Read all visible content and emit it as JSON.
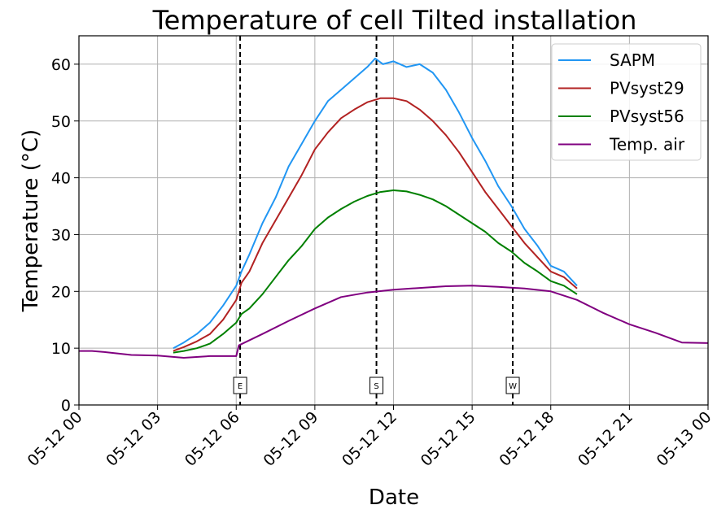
{
  "chart_data": {
    "type": "line",
    "title": "Temperature of cell Tilted installation",
    "xlabel": "Date",
    "ylabel": "Temperature (°C)",
    "ylim": [
      0,
      65
    ],
    "xlim_hours": [
      0,
      24
    ],
    "grid": true,
    "legend_position": "top-right",
    "x_tick_labels": [
      "05-12 00",
      "05-12 03",
      "05-12 06",
      "05-12 09",
      "05-12 12",
      "05-12 15",
      "05-12 18",
      "05-12 21",
      "05-13 00"
    ],
    "y_ticks": [
      0,
      10,
      20,
      30,
      40,
      50,
      60
    ],
    "vertical_markers": [
      {
        "label": "E",
        "x_hour": 6.15
      },
      {
        "label": "S",
        "x_hour": 11.35
      },
      {
        "label": "W",
        "x_hour": 16.55
      }
    ],
    "series": [
      {
        "name": "SAPM",
        "color": "#2196f3",
        "x_hour": [
          3.6,
          4.0,
          4.5,
          5.0,
          5.5,
          6.0,
          6.2,
          6.5,
          7.0,
          7.5,
          8.0,
          8.5,
          9.0,
          9.5,
          10.0,
          10.5,
          11.0,
          11.3,
          11.6,
          12.0,
          12.5,
          13.0,
          13.5,
          14.0,
          14.5,
          15.0,
          15.5,
          16.0,
          16.5,
          17.0,
          17.5,
          18.0,
          18.5,
          19.0
        ],
        "values": [
          10.0,
          11.0,
          12.5,
          14.5,
          17.5,
          21.0,
          23.5,
          26.5,
          32.0,
          36.5,
          42.0,
          46.0,
          50.0,
          53.5,
          55.5,
          57.5,
          59.5,
          61.0,
          60.0,
          60.5,
          59.5,
          60.0,
          58.5,
          55.5,
          51.5,
          47.0,
          43.0,
          38.5,
          35.0,
          31.0,
          28.0,
          24.5,
          23.5,
          21.0
        ]
      },
      {
        "name": "PVsyst29",
        "color": "#b22222",
        "x_hour": [
          3.6,
          4.0,
          4.5,
          5.0,
          5.5,
          6.0,
          6.2,
          6.5,
          7.0,
          7.5,
          8.0,
          8.5,
          9.0,
          9.5,
          10.0,
          10.5,
          11.0,
          11.5,
          12.0,
          12.5,
          13.0,
          13.5,
          14.0,
          14.5,
          15.0,
          15.5,
          16.0,
          16.5,
          17.0,
          17.5,
          18.0,
          18.5,
          19.0
        ],
        "values": [
          9.5,
          10.2,
          11.2,
          12.5,
          15.0,
          18.5,
          21.5,
          23.5,
          28.5,
          32.5,
          36.5,
          40.5,
          45.0,
          48.0,
          50.5,
          52.0,
          53.3,
          54.0,
          54.0,
          53.5,
          52.0,
          50.0,
          47.5,
          44.5,
          41.0,
          37.5,
          34.5,
          31.5,
          28.5,
          26.0,
          23.5,
          22.5,
          20.5
        ]
      },
      {
        "name": "PVsyst56",
        "color": "#008000",
        "x_hour": [
          3.6,
          4.0,
          4.5,
          5.0,
          5.5,
          6.0,
          6.2,
          6.5,
          7.0,
          7.5,
          8.0,
          8.5,
          9.0,
          9.5,
          10.0,
          10.5,
          11.0,
          11.5,
          12.0,
          12.5,
          13.0,
          13.5,
          14.0,
          14.5,
          15.0,
          15.5,
          16.0,
          16.5,
          17.0,
          17.5,
          18.0,
          18.5,
          19.0
        ],
        "values": [
          9.2,
          9.5,
          10.0,
          10.8,
          12.5,
          14.5,
          16.0,
          17.0,
          19.5,
          22.5,
          25.5,
          28.0,
          31.0,
          33.0,
          34.5,
          35.8,
          36.8,
          37.5,
          37.8,
          37.6,
          37.0,
          36.2,
          35.0,
          33.5,
          32.0,
          30.5,
          28.5,
          27.0,
          25.0,
          23.5,
          21.8,
          21.0,
          19.5
        ]
      },
      {
        "name": "Temp. air",
        "color": "#800080",
        "x_hour": [
          0,
          0.5,
          1.0,
          2.0,
          3.0,
          4.0,
          5.0,
          6.0,
          6.1,
          7.0,
          8.0,
          9.0,
          10.0,
          11.0,
          12.0,
          13.0,
          14.0,
          15.0,
          16.0,
          17.0,
          18.0,
          19.0,
          20.0,
          21.0,
          22.0,
          23.0,
          24.0
        ],
        "values": [
          9.5,
          9.5,
          9.3,
          8.8,
          8.7,
          8.3,
          8.6,
          8.6,
          10.5,
          12.5,
          14.8,
          17.0,
          19.0,
          19.8,
          20.3,
          20.6,
          20.9,
          21.0,
          20.8,
          20.5,
          20.0,
          18.5,
          16.2,
          14.2,
          12.7,
          11.0,
          10.9
        ]
      }
    ]
  }
}
